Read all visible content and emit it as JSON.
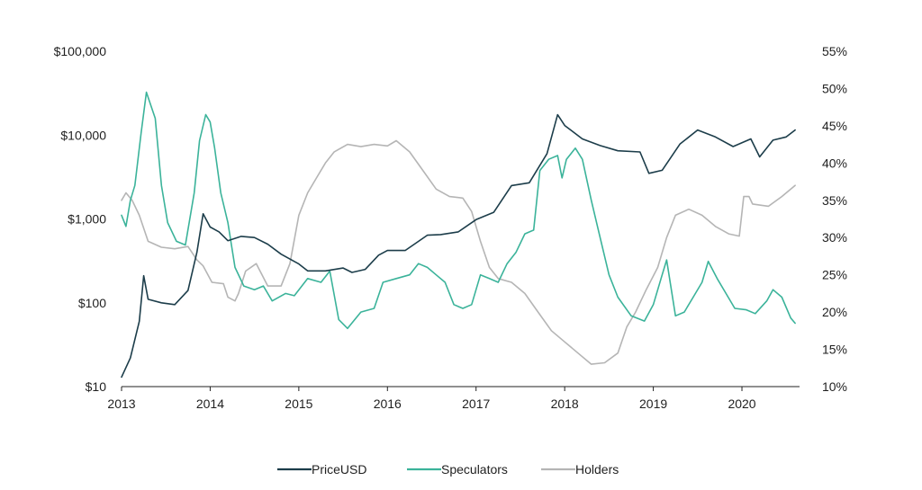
{
  "chart_data": {
    "type": "line",
    "title": "",
    "xlabel": "",
    "ylabel_left": "",
    "ylabel_right": "",
    "x_ticks": [
      "2013",
      "2014",
      "2015",
      "2016",
      "2017",
      "2018",
      "2019",
      "2020"
    ],
    "x_range": [
      2013.0,
      2020.65
    ],
    "y_left": {
      "scale": "log",
      "ticks": [
        "$10",
        "$100",
        "$1,000",
        "$10,000",
        "$100,000"
      ],
      "range": [
        10,
        100000
      ]
    },
    "y_right": {
      "scale": "linear",
      "ticks": [
        "10%",
        "15%",
        "20%",
        "25%",
        "30%",
        "35%",
        "40%",
        "45%",
        "50%",
        "55%"
      ],
      "range": [
        10,
        55
      ]
    },
    "grid": false,
    "legend_position": "bottom-center",
    "series": [
      {
        "name": "PriceUSD",
        "axis": "left",
        "color": "#1c3d4a",
        "points": [
          [
            2013.0,
            13
          ],
          [
            2013.1,
            22
          ],
          [
            2013.2,
            60
          ],
          [
            2013.25,
            210
          ],
          [
            2013.3,
            110
          ],
          [
            2013.45,
            100
          ],
          [
            2013.6,
            95
          ],
          [
            2013.75,
            140
          ],
          [
            2013.85,
            400
          ],
          [
            2013.92,
            1150
          ],
          [
            2014.0,
            800
          ],
          [
            2014.1,
            700
          ],
          [
            2014.2,
            550
          ],
          [
            2014.35,
            620
          ],
          [
            2014.5,
            600
          ],
          [
            2014.65,
            500
          ],
          [
            2014.8,
            380
          ],
          [
            2015.0,
            290
          ],
          [
            2015.1,
            240
          ],
          [
            2015.3,
            240
          ],
          [
            2015.5,
            260
          ],
          [
            2015.6,
            230
          ],
          [
            2015.75,
            250
          ],
          [
            2015.9,
            370
          ],
          [
            2016.0,
            420
          ],
          [
            2016.2,
            420
          ],
          [
            2016.45,
            640
          ],
          [
            2016.6,
            650
          ],
          [
            2016.8,
            700
          ],
          [
            2017.0,
            980
          ],
          [
            2017.2,
            1200
          ],
          [
            2017.4,
            2500
          ],
          [
            2017.6,
            2700
          ],
          [
            2017.8,
            6000
          ],
          [
            2017.92,
            17500
          ],
          [
            2018.0,
            13000
          ],
          [
            2018.2,
            9000
          ],
          [
            2018.4,
            7500
          ],
          [
            2018.6,
            6500
          ],
          [
            2018.85,
            6300
          ],
          [
            2018.95,
            3500
          ],
          [
            2019.1,
            3800
          ],
          [
            2019.3,
            7800
          ],
          [
            2019.5,
            11500
          ],
          [
            2019.7,
            9500
          ],
          [
            2019.9,
            7300
          ],
          [
            2020.1,
            9000
          ],
          [
            2020.2,
            5500
          ],
          [
            2020.35,
            8700
          ],
          [
            2020.5,
            9500
          ],
          [
            2020.6,
            11500
          ]
        ]
      },
      {
        "name": "Speculators",
        "axis": "right",
        "color": "#3bb39a",
        "points": [
          [
            2013.0,
            33
          ],
          [
            2013.05,
            31.5
          ],
          [
            2013.1,
            35
          ],
          [
            2013.15,
            37
          ],
          [
            2013.22,
            44
          ],
          [
            2013.28,
            49.5
          ],
          [
            2013.38,
            46
          ],
          [
            2013.45,
            37
          ],
          [
            2013.52,
            32
          ],
          [
            2013.62,
            29.5
          ],
          [
            2013.72,
            29
          ],
          [
            2013.82,
            36
          ],
          [
            2013.88,
            43
          ],
          [
            2013.95,
            46.5
          ],
          [
            2014.0,
            45.5
          ],
          [
            2014.05,
            42
          ],
          [
            2014.12,
            36
          ],
          [
            2014.2,
            32
          ],
          [
            2014.28,
            26
          ],
          [
            2014.38,
            23.5
          ],
          [
            2014.5,
            23
          ],
          [
            2014.6,
            23.5
          ],
          [
            2014.7,
            21.5
          ],
          [
            2014.85,
            22.5
          ],
          [
            2014.95,
            22.2
          ],
          [
            2015.1,
            24.5
          ],
          [
            2015.25,
            24
          ],
          [
            2015.35,
            25.5
          ],
          [
            2015.45,
            19
          ],
          [
            2015.55,
            17.8
          ],
          [
            2015.7,
            20
          ],
          [
            2015.85,
            20.5
          ],
          [
            2015.95,
            24
          ],
          [
            2016.1,
            24.5
          ],
          [
            2016.25,
            25
          ],
          [
            2016.35,
            26.5
          ],
          [
            2016.45,
            26
          ],
          [
            2016.55,
            25
          ],
          [
            2016.65,
            24
          ],
          [
            2016.75,
            21
          ],
          [
            2016.85,
            20.5
          ],
          [
            2016.95,
            21
          ],
          [
            2017.05,
            25
          ],
          [
            2017.15,
            24.5
          ],
          [
            2017.25,
            24
          ],
          [
            2017.35,
            26.5
          ],
          [
            2017.45,
            28
          ],
          [
            2017.55,
            30.5
          ],
          [
            2017.65,
            31
          ],
          [
            2017.72,
            39
          ],
          [
            2017.82,
            40.5
          ],
          [
            2017.92,
            41
          ],
          [
            2017.97,
            38
          ],
          [
            2018.02,
            40.5
          ],
          [
            2018.12,
            42
          ],
          [
            2018.2,
            40.5
          ],
          [
            2018.3,
            35
          ],
          [
            2018.4,
            30
          ],
          [
            2018.5,
            25
          ],
          [
            2018.6,
            22
          ],
          [
            2018.75,
            19.5
          ],
          [
            2018.9,
            18.8
          ],
          [
            2019.0,
            21
          ],
          [
            2019.1,
            25
          ],
          [
            2019.15,
            27
          ],
          [
            2019.25,
            19.5
          ],
          [
            2019.35,
            20
          ],
          [
            2019.45,
            22
          ],
          [
            2019.55,
            24
          ],
          [
            2019.62,
            26.8
          ],
          [
            2019.72,
            24.5
          ],
          [
            2019.82,
            22.5
          ],
          [
            2019.92,
            20.5
          ],
          [
            2020.05,
            20.3
          ],
          [
            2020.15,
            19.8
          ],
          [
            2020.28,
            21.5
          ],
          [
            2020.35,
            23
          ],
          [
            2020.45,
            22
          ],
          [
            2020.55,
            19.2
          ],
          [
            2020.6,
            18.5
          ]
        ]
      },
      {
        "name": "Holders",
        "axis": "right",
        "color": "#b5b5b5",
        "points": [
          [
            2013.0,
            35
          ],
          [
            2013.05,
            36
          ],
          [
            2013.12,
            35
          ],
          [
            2013.2,
            33
          ],
          [
            2013.3,
            29.5
          ],
          [
            2013.45,
            28.7
          ],
          [
            2013.6,
            28.5
          ],
          [
            2013.75,
            28.8
          ],
          [
            2013.85,
            27
          ],
          [
            2013.92,
            26.2
          ],
          [
            2014.02,
            24
          ],
          [
            2014.15,
            23.8
          ],
          [
            2014.2,
            22
          ],
          [
            2014.28,
            21.5
          ],
          [
            2014.32,
            22.5
          ],
          [
            2014.4,
            25.5
          ],
          [
            2014.52,
            26.5
          ],
          [
            2014.65,
            23.5
          ],
          [
            2014.8,
            23.5
          ],
          [
            2014.9,
            26.5
          ],
          [
            2015.0,
            33
          ],
          [
            2015.1,
            36
          ],
          [
            2015.2,
            38
          ],
          [
            2015.3,
            40
          ],
          [
            2015.4,
            41.5
          ],
          [
            2015.55,
            42.5
          ],
          [
            2015.7,
            42.2
          ],
          [
            2015.85,
            42.5
          ],
          [
            2016.0,
            42.3
          ],
          [
            2016.1,
            43
          ],
          [
            2016.25,
            41.5
          ],
          [
            2016.4,
            39
          ],
          [
            2016.55,
            36.5
          ],
          [
            2016.7,
            35.5
          ],
          [
            2016.85,
            35.3
          ],
          [
            2016.95,
            33.5
          ],
          [
            2017.05,
            29.5
          ],
          [
            2017.15,
            26
          ],
          [
            2017.25,
            24.5
          ],
          [
            2017.4,
            24
          ],
          [
            2017.55,
            22.5
          ],
          [
            2017.7,
            20
          ],
          [
            2017.85,
            17.5
          ],
          [
            2018.0,
            16
          ],
          [
            2018.15,
            14.5
          ],
          [
            2018.3,
            13
          ],
          [
            2018.45,
            13.2
          ],
          [
            2018.6,
            14.5
          ],
          [
            2018.7,
            18
          ],
          [
            2018.8,
            20
          ],
          [
            2018.92,
            23
          ],
          [
            2019.05,
            26
          ],
          [
            2019.15,
            30
          ],
          [
            2019.25,
            33
          ],
          [
            2019.4,
            33.8
          ],
          [
            2019.55,
            33
          ],
          [
            2019.7,
            31.5
          ],
          [
            2019.85,
            30.5
          ],
          [
            2019.97,
            30.2
          ],
          [
            2020.02,
            35.5
          ],
          [
            2020.08,
            35.5
          ],
          [
            2020.12,
            34.5
          ],
          [
            2020.3,
            34.2
          ],
          [
            2020.45,
            35.5
          ],
          [
            2020.6,
            37
          ]
        ]
      }
    ]
  }
}
